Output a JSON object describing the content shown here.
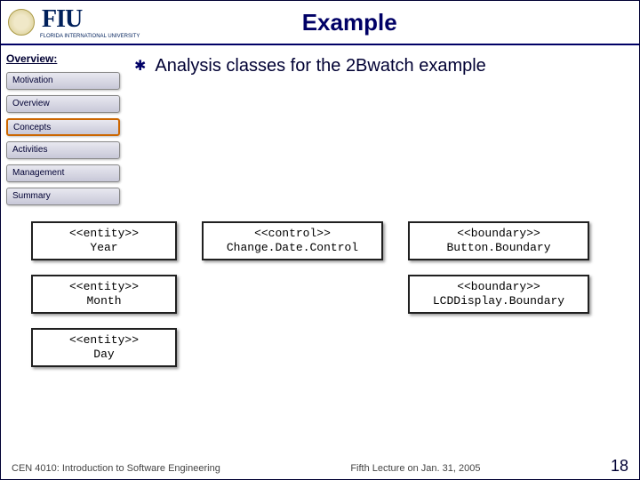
{
  "header": {
    "logo_text": "FIU",
    "logo_sub": "FLORIDA INTERNATIONAL UNIVERSITY",
    "title": "Example"
  },
  "sidebar": {
    "heading": "Overview:",
    "items": [
      {
        "label": "Motivation",
        "active": false
      },
      {
        "label": "Overview",
        "active": false
      },
      {
        "label": "Concepts",
        "active": true
      },
      {
        "label": "Activities",
        "active": false
      },
      {
        "label": "Management",
        "active": false
      },
      {
        "label": "Summary",
        "active": false
      }
    ]
  },
  "content": {
    "bullet": "Analysis classes for the 2Bwatch example"
  },
  "uml": {
    "rows": [
      [
        {
          "stereo": "<<entity>>",
          "name": "Year",
          "col": "a"
        },
        {
          "stereo": "<<control>>",
          "name": "Change.Date.Control",
          "col": "b"
        },
        {
          "stereo": "<<boundary>>",
          "name": "Button.Boundary",
          "col": "c"
        }
      ],
      [
        {
          "stereo": "<<entity>>",
          "name": "Month",
          "col": "a"
        },
        null,
        {
          "stereo": "<<boundary>>",
          "name": "LCDDisplay.Boundary",
          "col": "c"
        }
      ],
      [
        {
          "stereo": "<<entity>>",
          "name": "Day",
          "col": "a"
        }
      ]
    ]
  },
  "footer": {
    "course": "CEN 4010: Introduction to Software Engineering",
    "lecture": "Fifth Lecture on Jan. 31, 2005",
    "page": "18"
  },
  "colors": {
    "title_color": "#000066",
    "border_color": "#000033",
    "sidebar_active_border": "#cc6600"
  }
}
